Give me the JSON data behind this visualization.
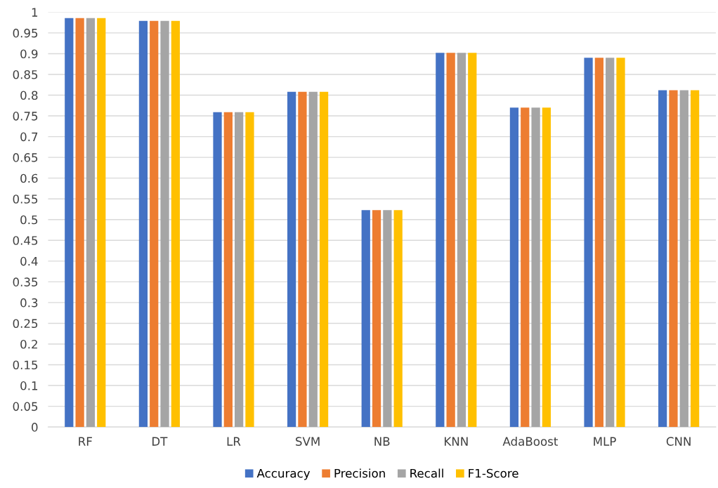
{
  "chart_data": {
    "type": "bar",
    "categories": [
      "RF",
      "DT",
      "LR",
      "SVM",
      "NB",
      "KNN",
      "AdaBoost",
      "MLP",
      "CNN"
    ],
    "series": [
      {
        "name": "Accuracy",
        "color": "#4472c4",
        "values": [
          0.986,
          0.979,
          0.759,
          0.808,
          0.523,
          0.902,
          0.77,
          0.89,
          0.812
        ]
      },
      {
        "name": "Precision",
        "color": "#ed7d31",
        "values": [
          0.986,
          0.979,
          0.759,
          0.808,
          0.523,
          0.902,
          0.77,
          0.89,
          0.812
        ]
      },
      {
        "name": "Recall",
        "color": "#a5a5a5",
        "values": [
          0.986,
          0.979,
          0.759,
          0.808,
          0.523,
          0.902,
          0.77,
          0.89,
          0.812
        ]
      },
      {
        "name": "F1-Score",
        "color": "#ffc000",
        "values": [
          0.986,
          0.979,
          0.759,
          0.808,
          0.523,
          0.902,
          0.77,
          0.89,
          0.812
        ]
      }
    ],
    "ylim": [
      0,
      1
    ],
    "yticks": [
      0,
      0.05,
      0.1,
      0.15,
      0.2,
      0.25,
      0.3,
      0.35,
      0.4,
      0.45,
      0.5,
      0.55,
      0.6,
      0.65,
      0.7,
      0.75,
      0.8,
      0.85,
      0.9,
      0.95,
      1
    ],
    "grid": "y",
    "legend": "bottom"
  }
}
